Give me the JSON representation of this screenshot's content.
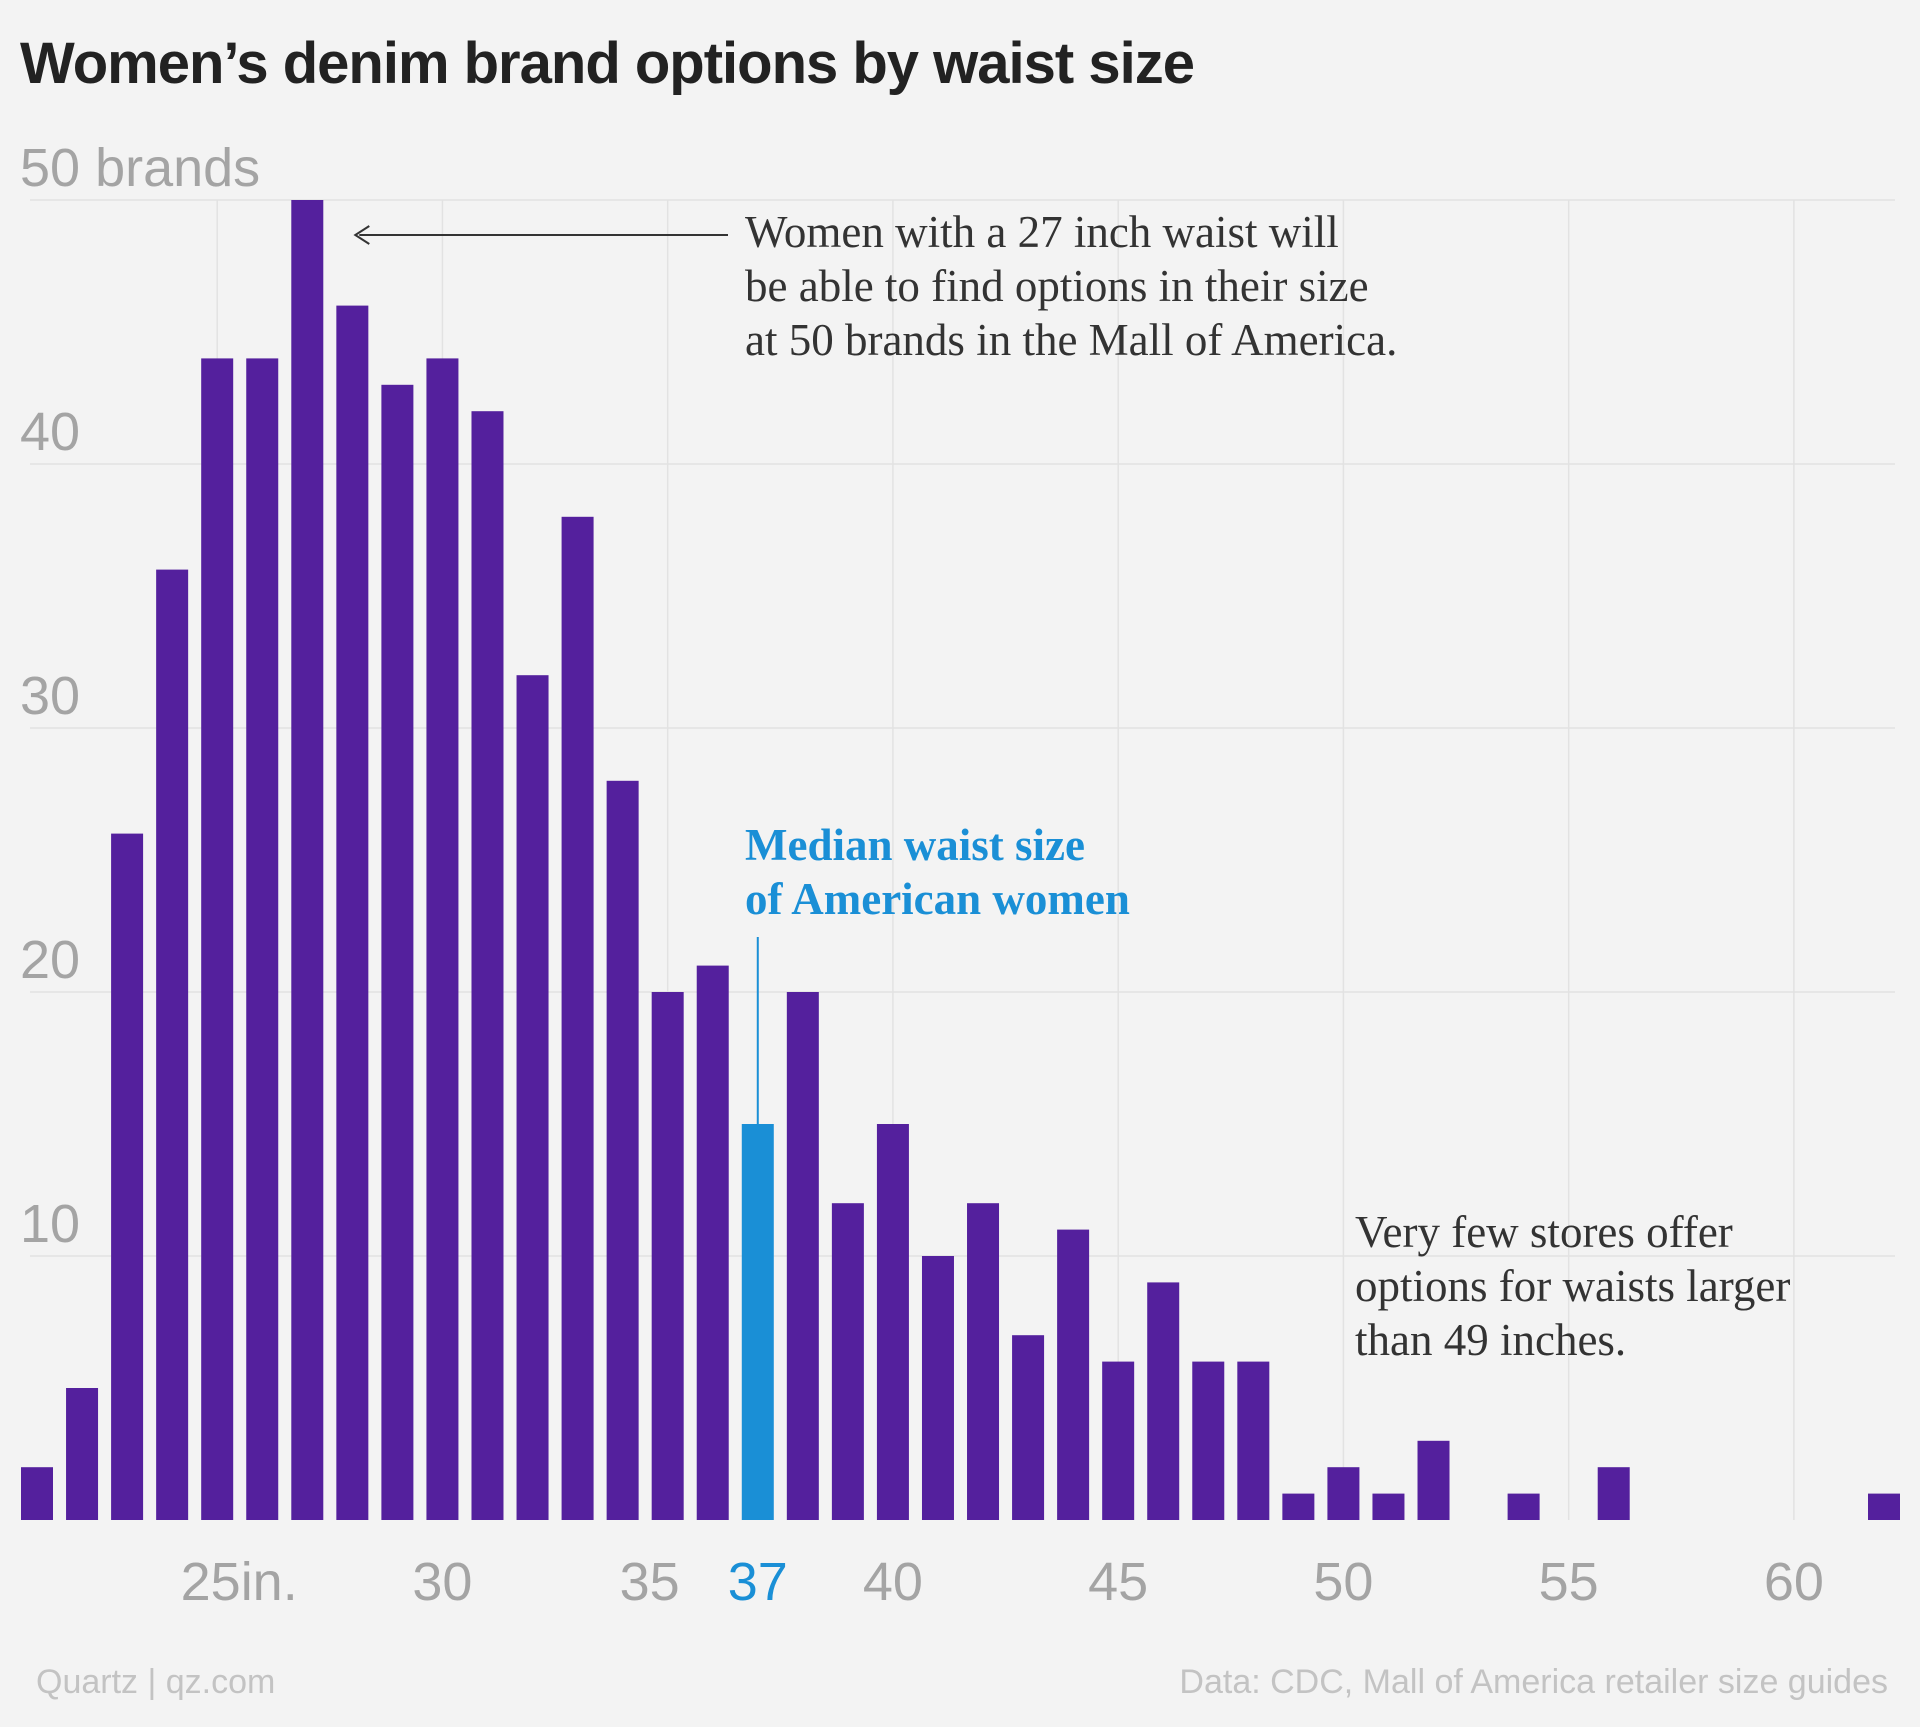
{
  "title": "Women’s denim brand options by waist size",
  "chart_data": {
    "type": "bar",
    "xlabel": "",
    "ylabel": "brands",
    "ylim": [
      0,
      50
    ],
    "y_ticks": [
      {
        "value": 10,
        "label": "10"
      },
      {
        "value": 20,
        "label": "20"
      },
      {
        "value": 30,
        "label": "30"
      },
      {
        "value": 40,
        "label": "40"
      },
      {
        "value": 50,
        "label": "50 brands"
      }
    ],
    "x_ticks": [
      {
        "value": 25,
        "label": "25in."
      },
      {
        "value": 30,
        "label": "30"
      },
      {
        "value": 35,
        "label": "35"
      },
      {
        "value": 37,
        "label": "37",
        "highlight": true
      },
      {
        "value": 40,
        "label": "40"
      },
      {
        "value": 45,
        "label": "45"
      },
      {
        "value": 50,
        "label": "50"
      },
      {
        "value": 55,
        "label": "55"
      },
      {
        "value": 60,
        "label": "60"
      }
    ],
    "bars": [
      {
        "x": 21,
        "value": 2
      },
      {
        "x": 22,
        "value": 5
      },
      {
        "x": 23,
        "value": 26
      },
      {
        "x": 24,
        "value": 36
      },
      {
        "x": 25,
        "value": 44
      },
      {
        "x": 26,
        "value": 44
      },
      {
        "x": 27,
        "value": 50
      },
      {
        "x": 28,
        "value": 46
      },
      {
        "x": 29,
        "value": 43
      },
      {
        "x": 30,
        "value": 44
      },
      {
        "x": 31,
        "value": 42
      },
      {
        "x": 32,
        "value": 32
      },
      {
        "x": 33,
        "value": 38
      },
      {
        "x": 34,
        "value": 28
      },
      {
        "x": 35,
        "value": 20
      },
      {
        "x": 36,
        "value": 21
      },
      {
        "x": 37,
        "value": 15,
        "highlight": true
      },
      {
        "x": 38,
        "value": 20
      },
      {
        "x": 39,
        "value": 12
      },
      {
        "x": 40,
        "value": 15
      },
      {
        "x": 41,
        "value": 10
      },
      {
        "x": 42,
        "value": 12
      },
      {
        "x": 43,
        "value": 7
      },
      {
        "x": 44,
        "value": 11
      },
      {
        "x": 45,
        "value": 6
      },
      {
        "x": 46,
        "value": 9
      },
      {
        "x": 47,
        "value": 6
      },
      {
        "x": 48,
        "value": 6
      },
      {
        "x": 49,
        "value": 1
      },
      {
        "x": 50,
        "value": 2
      },
      {
        "x": 51,
        "value": 1
      },
      {
        "x": 52,
        "value": 3
      },
      {
        "x": 54,
        "value": 1
      },
      {
        "x": 56,
        "value": 2
      },
      {
        "x": 62,
        "value": 1
      }
    ],
    "colors": {
      "bar": "#54209d",
      "highlight": "#1a8fd6",
      "grid": "#e2e2e2",
      "tick_label": "#a4a4a4",
      "annotation": "#333333"
    },
    "grid": true,
    "annotations": [
      {
        "id": "peak",
        "target_x": 27,
        "lines": [
          "Women with a 27 inch waist will",
          "be able to find options in their size",
          "at 50 brands in the Mall of America."
        ]
      },
      {
        "id": "median",
        "target_x": 37,
        "lines": [
          "Median waist size",
          "of American women"
        ]
      },
      {
        "id": "large",
        "lines": [
          "Very few stores offer",
          "options for waists larger",
          "than 49 inches."
        ]
      }
    ]
  },
  "footer": {
    "source_left": "Quartz | qz.com",
    "source_right": "Data: CDC, Mall of America retailer size guides"
  }
}
